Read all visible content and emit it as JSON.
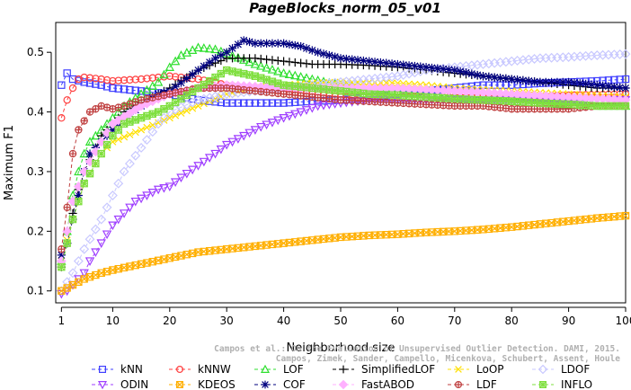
{
  "chart_data": {
    "type": "line",
    "title": "PageBlocks_norm_05_v01",
    "xlabel": "Neighborhood size",
    "ylabel": "Maximum F1",
    "xlim": [
      0,
      100
    ],
    "ylim": [
      0.08,
      0.55
    ],
    "xticks": [
      1,
      10,
      20,
      30,
      40,
      50,
      60,
      70,
      80,
      90,
      100
    ],
    "yticks": [
      0.1,
      0.2,
      0.3,
      0.4,
      0.5
    ],
    "grid": false,
    "legend_position": "bottom",
    "series": [
      {
        "name": "kNN",
        "color": "#3f3fff",
        "marker": "square",
        "dash": "4,3",
        "points": [
          [
            1,
            0.445
          ],
          [
            2,
            0.465
          ],
          [
            3,
            0.455
          ],
          [
            5,
            0.45
          ],
          [
            8,
            0.445
          ],
          [
            10,
            0.44
          ],
          [
            15,
            0.435
          ],
          [
            20,
            0.43
          ],
          [
            25,
            0.42
          ],
          [
            30,
            0.415
          ],
          [
            40,
            0.415
          ],
          [
            45,
            0.418
          ],
          [
            50,
            0.42
          ],
          [
            55,
            0.425
          ],
          [
            60,
            0.43
          ],
          [
            65,
            0.435
          ],
          [
            70,
            0.44
          ],
          [
            75,
            0.445
          ],
          [
            80,
            0.445
          ],
          [
            85,
            0.448
          ],
          [
            90,
            0.45
          ],
          [
            95,
            0.452
          ],
          [
            100,
            0.455
          ]
        ]
      },
      {
        "name": "kNNW",
        "color": "#ff3f3f",
        "marker": "circle",
        "dash": "4,3",
        "points": [
          [
            1,
            0.39
          ],
          [
            2,
            0.42
          ],
          [
            3,
            0.44
          ],
          [
            4,
            0.455
          ],
          [
            5,
            0.458
          ],
          [
            8,
            0.455
          ],
          [
            10,
            0.452
          ],
          [
            15,
            0.455
          ],
          [
            20,
            0.46
          ],
          [
            25,
            0.455
          ],
          [
            30,
            0.445
          ],
          [
            40,
            0.435
          ],
          [
            50,
            0.425
          ],
          [
            60,
            0.425
          ],
          [
            70,
            0.425
          ],
          [
            80,
            0.425
          ],
          [
            90,
            0.428
          ],
          [
            100,
            0.43
          ]
        ]
      },
      {
        "name": "LOF",
        "color": "#2fdf2f",
        "marker": "triangle-up",
        "dash": "4,3",
        "points": [
          [
            1,
            0.15
          ],
          [
            2,
            0.2
          ],
          [
            3,
            0.26
          ],
          [
            4,
            0.3
          ],
          [
            5,
            0.33
          ],
          [
            6,
            0.35
          ],
          [
            8,
            0.37
          ],
          [
            10,
            0.39
          ],
          [
            12,
            0.41
          ],
          [
            15,
            0.43
          ],
          [
            18,
            0.45
          ],
          [
            20,
            0.475
          ],
          [
            22,
            0.495
          ],
          [
            25,
            0.508
          ],
          [
            28,
            0.505
          ],
          [
            30,
            0.498
          ],
          [
            35,
            0.48
          ],
          [
            40,
            0.465
          ],
          [
            45,
            0.455
          ],
          [
            50,
            0.445
          ],
          [
            55,
            0.44
          ],
          [
            60,
            0.435
          ],
          [
            65,
            0.43
          ],
          [
            70,
            0.425
          ],
          [
            75,
            0.42
          ],
          [
            80,
            0.418
          ],
          [
            85,
            0.415
          ],
          [
            90,
            0.412
          ],
          [
            95,
            0.41
          ],
          [
            100,
            0.41
          ]
        ]
      },
      {
        "name": "SimplifiedLOF",
        "color": "#000000",
        "marker": "plus",
        "dash": "4,3",
        "points": [
          [
            1,
            0.14
          ],
          [
            2,
            0.18
          ],
          [
            3,
            0.23
          ],
          [
            4,
            0.27
          ],
          [
            5,
            0.3
          ],
          [
            6,
            0.32
          ],
          [
            8,
            0.36
          ],
          [
            10,
            0.38
          ],
          [
            12,
            0.4
          ],
          [
            15,
            0.415
          ],
          [
            18,
            0.43
          ],
          [
            20,
            0.44
          ],
          [
            25,
            0.47
          ],
          [
            30,
            0.49
          ],
          [
            35,
            0.49
          ],
          [
            40,
            0.485
          ],
          [
            45,
            0.48
          ],
          [
            50,
            0.48
          ],
          [
            55,
            0.478
          ],
          [
            60,
            0.475
          ],
          [
            65,
            0.47
          ],
          [
            70,
            0.465
          ],
          [
            75,
            0.46
          ],
          [
            80,
            0.455
          ],
          [
            85,
            0.45
          ],
          [
            90,
            0.445
          ],
          [
            95,
            0.44
          ],
          [
            100,
            0.44
          ]
        ]
      },
      {
        "name": "LoOP",
        "color": "#ffe000",
        "marker": "x",
        "dash": "4,3",
        "points": [
          [
            1,
            0.15
          ],
          [
            3,
            0.22
          ],
          [
            5,
            0.28
          ],
          [
            8,
            0.33
          ],
          [
            10,
            0.35
          ],
          [
            15,
            0.37
          ],
          [
            20,
            0.39
          ],
          [
            25,
            0.41
          ],
          [
            30,
            0.43
          ],
          [
            35,
            0.44
          ],
          [
            40,
            0.445
          ],
          [
            45,
            0.448
          ],
          [
            50,
            0.45
          ],
          [
            55,
            0.45
          ],
          [
            60,
            0.448
          ],
          [
            65,
            0.445
          ],
          [
            70,
            0.44
          ],
          [
            80,
            0.435
          ],
          [
            90,
            0.43
          ],
          [
            100,
            0.425
          ]
        ]
      },
      {
        "name": "LDOF",
        "color": "#c8c8ff",
        "marker": "diamond",
        "dash": "4,3",
        "points": [
          [
            1,
            0.1
          ],
          [
            3,
            0.13
          ],
          [
            5,
            0.17
          ],
          [
            8,
            0.22
          ],
          [
            10,
            0.26
          ],
          [
            12,
            0.3
          ],
          [
            15,
            0.34
          ],
          [
            18,
            0.38
          ],
          [
            20,
            0.4
          ],
          [
            25,
            0.42
          ],
          [
            30,
            0.43
          ],
          [
            35,
            0.435
          ],
          [
            40,
            0.44
          ],
          [
            45,
            0.445
          ],
          [
            50,
            0.45
          ],
          [
            55,
            0.455
          ],
          [
            60,
            0.46
          ],
          [
            65,
            0.47
          ],
          [
            70,
            0.475
          ],
          [
            75,
            0.48
          ],
          [
            80,
            0.485
          ],
          [
            85,
            0.49
          ],
          [
            90,
            0.492
          ],
          [
            95,
            0.495
          ],
          [
            100,
            0.497
          ]
        ]
      },
      {
        "name": "ODIN",
        "color": "#9f3fff",
        "marker": "triangle-down",
        "dash": "4,3",
        "points": [
          [
            1,
            0.095
          ],
          [
            2,
            0.1
          ],
          [
            3,
            0.11
          ],
          [
            5,
            0.13
          ],
          [
            6,
            0.15
          ],
          [
            8,
            0.18
          ],
          [
            10,
            0.21
          ],
          [
            12,
            0.23
          ],
          [
            14,
            0.25
          ],
          [
            16,
            0.26
          ],
          [
            18,
            0.27
          ],
          [
            20,
            0.275
          ],
          [
            22,
            0.29
          ],
          [
            25,
            0.31
          ],
          [
            28,
            0.33
          ],
          [
            30,
            0.345
          ],
          [
            33,
            0.36
          ],
          [
            36,
            0.375
          ],
          [
            40,
            0.39
          ],
          [
            43,
            0.4
          ],
          [
            46,
            0.41
          ],
          [
            50,
            0.415
          ],
          [
            55,
            0.42
          ],
          [
            60,
            0.42
          ],
          [
            65,
            0.42
          ],
          [
            70,
            0.42
          ],
          [
            75,
            0.42
          ],
          [
            80,
            0.42
          ],
          [
            85,
            0.42
          ],
          [
            90,
            0.42
          ],
          [
            95,
            0.42
          ],
          [
            100,
            0.42
          ]
        ]
      },
      {
        "name": "KDEOS",
        "color": "#ffaf00",
        "marker": "square-x",
        "dash": "4,3",
        "points": [
          [
            1,
            0.1
          ],
          [
            2,
            0.105
          ],
          [
            3,
            0.11
          ],
          [
            5,
            0.12
          ],
          [
            8,
            0.13
          ],
          [
            10,
            0.135
          ],
          [
            15,
            0.145
          ],
          [
            20,
            0.155
          ],
          [
            25,
            0.165
          ],
          [
            30,
            0.17
          ],
          [
            35,
            0.175
          ],
          [
            40,
            0.18
          ],
          [
            45,
            0.185
          ],
          [
            50,
            0.19
          ],
          [
            55,
            0.193
          ],
          [
            60,
            0.195
          ],
          [
            65,
            0.198
          ],
          [
            70,
            0.2
          ],
          [
            75,
            0.203
          ],
          [
            80,
            0.207
          ],
          [
            85,
            0.212
          ],
          [
            90,
            0.217
          ],
          [
            95,
            0.222
          ],
          [
            100,
            0.226
          ]
        ]
      },
      {
        "name": "COF",
        "color": "#00007f",
        "marker": "star",
        "dash": "4,3",
        "points": [
          [
            1,
            0.16
          ],
          [
            2,
            0.18
          ],
          [
            3,
            0.22
          ],
          [
            4,
            0.26
          ],
          [
            5,
            0.3
          ],
          [
            6,
            0.33
          ],
          [
            8,
            0.35
          ],
          [
            10,
            0.37
          ],
          [
            12,
            0.39
          ],
          [
            15,
            0.41
          ],
          [
            18,
            0.43
          ],
          [
            20,
            0.435
          ],
          [
            25,
            0.47
          ],
          [
            28,
            0.49
          ],
          [
            30,
            0.5
          ],
          [
            33,
            0.52
          ],
          [
            35,
            0.515
          ],
          [
            40,
            0.515
          ],
          [
            43,
            0.51
          ],
          [
            46,
            0.5
          ],
          [
            50,
            0.49
          ],
          [
            55,
            0.485
          ],
          [
            60,
            0.48
          ],
          [
            65,
            0.475
          ],
          [
            70,
            0.47
          ],
          [
            75,
            0.46
          ],
          [
            80,
            0.455
          ],
          [
            85,
            0.45
          ],
          [
            90,
            0.45
          ],
          [
            95,
            0.445
          ],
          [
            100,
            0.44
          ]
        ]
      },
      {
        "name": "FastABOD",
        "color": "#ffb0ff",
        "marker": "diamond-filled",
        "dash": "4,3",
        "points": [
          [
            1,
            0.15
          ],
          [
            3,
            0.25
          ],
          [
            5,
            0.3
          ],
          [
            8,
            0.35
          ],
          [
            10,
            0.38
          ],
          [
            15,
            0.41
          ],
          [
            20,
            0.43
          ],
          [
            25,
            0.44
          ],
          [
            30,
            0.445
          ],
          [
            40,
            0.44
          ],
          [
            50,
            0.44
          ],
          [
            60,
            0.44
          ],
          [
            70,
            0.435
          ],
          [
            80,
            0.43
          ],
          [
            90,
            0.425
          ],
          [
            100,
            0.42
          ]
        ]
      },
      {
        "name": "LDF",
        "color": "#bf3f3f",
        "marker": "circle-plus",
        "dash": "4,3",
        "points": [
          [
            1,
            0.17
          ],
          [
            2,
            0.24
          ],
          [
            3,
            0.33
          ],
          [
            4,
            0.37
          ],
          [
            5,
            0.385
          ],
          [
            6,
            0.4
          ],
          [
            8,
            0.41
          ],
          [
            10,
            0.405
          ],
          [
            12,
            0.41
          ],
          [
            15,
            0.42
          ],
          [
            20,
            0.43
          ],
          [
            25,
            0.44
          ],
          [
            30,
            0.44
          ],
          [
            40,
            0.43
          ],
          [
            50,
            0.42
          ],
          [
            60,
            0.415
          ],
          [
            70,
            0.41
          ],
          [
            75,
            0.41
          ],
          [
            80,
            0.405
          ],
          [
            85,
            0.405
          ],
          [
            90,
            0.405
          ],
          [
            95,
            0.41
          ],
          [
            100,
            0.41
          ]
        ]
      },
      {
        "name": "INFLO",
        "color": "#7fdf3f",
        "marker": "square-star",
        "dash": "4,3",
        "points": [
          [
            1,
            0.14
          ],
          [
            3,
            0.22
          ],
          [
            5,
            0.28
          ],
          [
            8,
            0.33
          ],
          [
            10,
            0.36
          ],
          [
            12,
            0.38
          ],
          [
            15,
            0.39
          ],
          [
            18,
            0.4
          ],
          [
            20,
            0.41
          ],
          [
            25,
            0.44
          ],
          [
            30,
            0.47
          ],
          [
            35,
            0.46
          ],
          [
            40,
            0.445
          ],
          [
            45,
            0.44
          ],
          [
            50,
            0.435
          ],
          [
            55,
            0.43
          ],
          [
            60,
            0.428
          ],
          [
            65,
            0.425
          ],
          [
            70,
            0.422
          ],
          [
            75,
            0.42
          ],
          [
            80,
            0.418
          ],
          [
            85,
            0.415
          ],
          [
            90,
            0.413
          ],
          [
            95,
            0.41
          ],
          [
            100,
            0.41
          ]
        ]
      }
    ],
    "watermark": [
      "Campos et al.: On the Evaluation of Unsupervised Outlier Detection. DAMI, 2015.",
      "Campos, Zimek, Sander, Campello, Micenkova, Schubert, Assent, Houle"
    ]
  }
}
